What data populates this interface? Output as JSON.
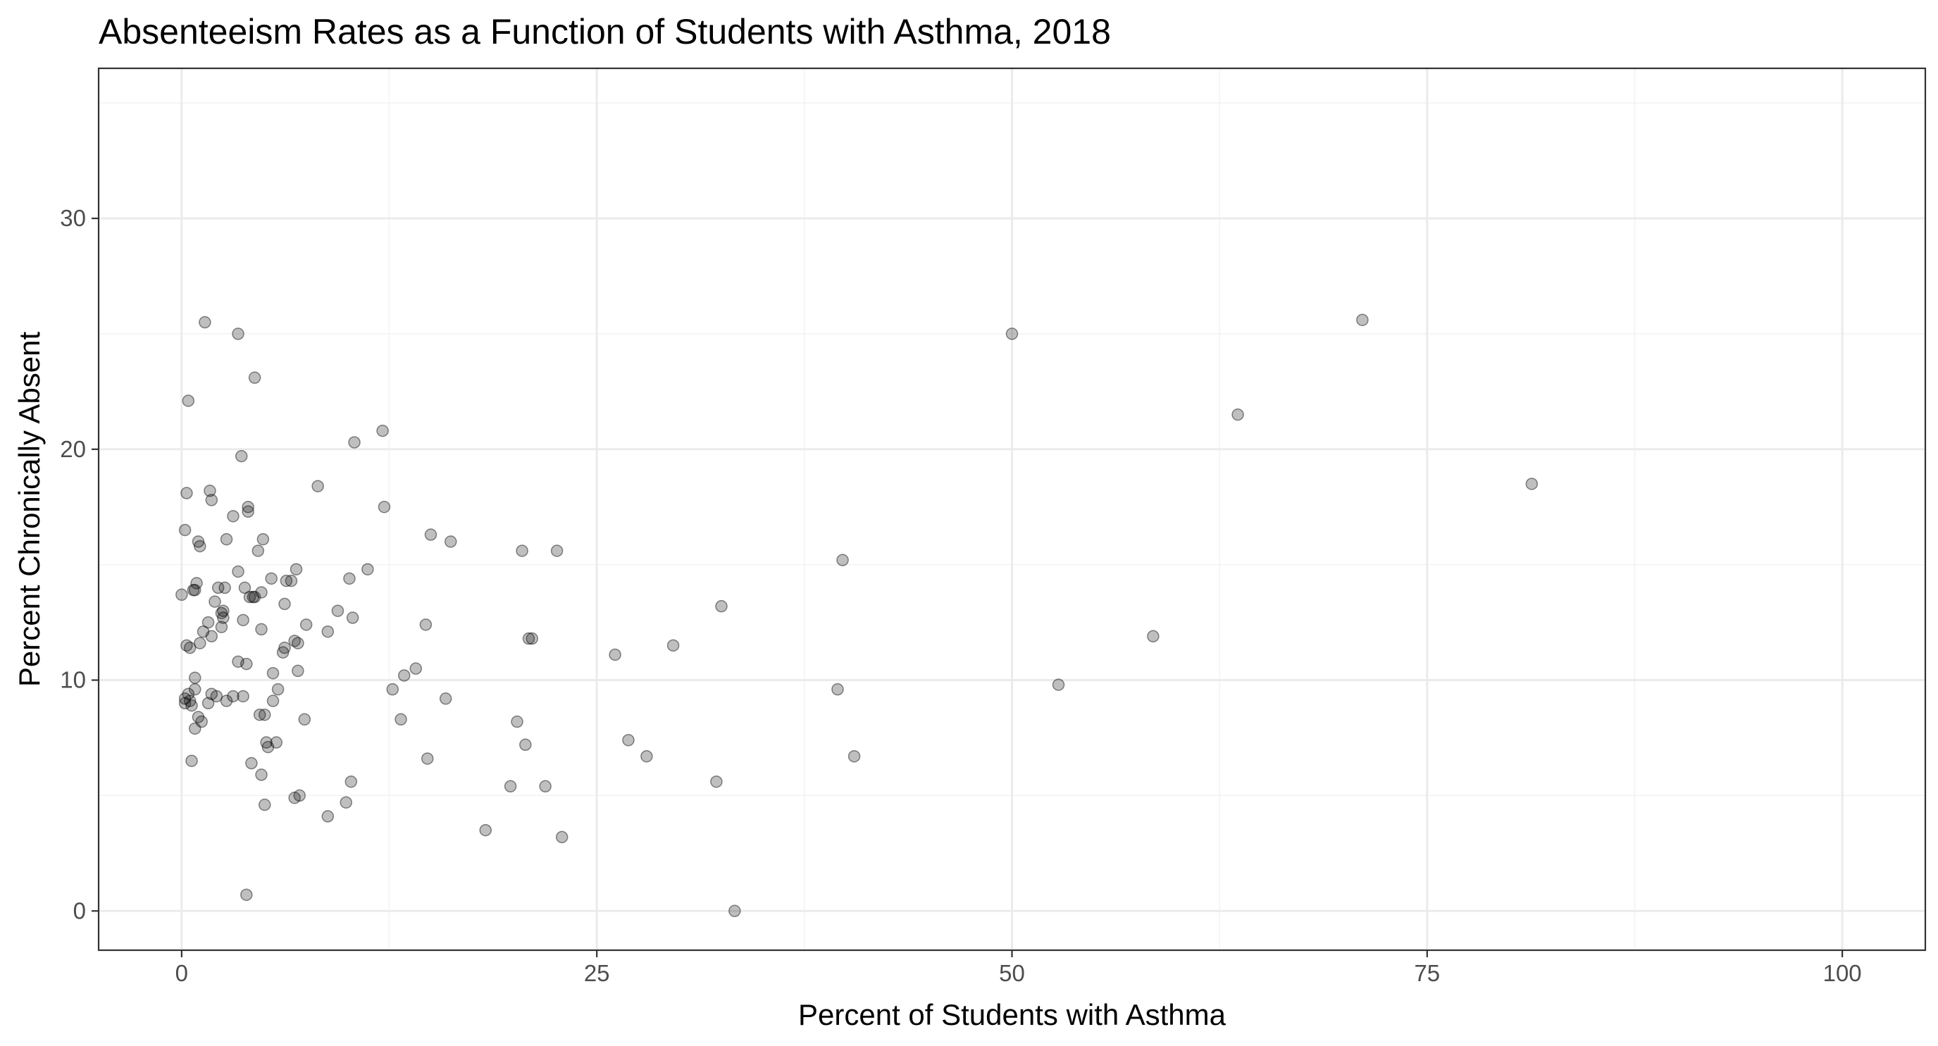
{
  "chart_data": {
    "type": "scatter",
    "title": "Absenteeism Rates as a Function of Students with Asthma, 2018",
    "xlabel": "Percent of Students with Asthma",
    "ylabel": "Percent Chronically Absent",
    "xlim": [
      -5,
      105
    ],
    "ylim": [
      -1.7,
      36.5
    ],
    "x_ticks": [
      0,
      25,
      50,
      75,
      100
    ],
    "y_ticks": [
      0,
      10,
      20,
      30
    ],
    "x_tick_labels": [
      "0",
      "25",
      "50",
      "75",
      "100"
    ],
    "y_tick_labels": [
      "0",
      "10",
      "20",
      "30"
    ],
    "point_color": "#000000",
    "point_alpha": 0.25,
    "points": [
      [
        0.0,
        13.7
      ],
      [
        0.2,
        16.5
      ],
      [
        0.2,
        9.2
      ],
      [
        0.2,
        9.0
      ],
      [
        0.3,
        18.1
      ],
      [
        0.3,
        11.5
      ],
      [
        0.4,
        22.1
      ],
      [
        0.4,
        9.4
      ],
      [
        0.5,
        11.4
      ],
      [
        0.5,
        9.1
      ],
      [
        0.6,
        6.5
      ],
      [
        0.6,
        8.9
      ],
      [
        0.7,
        13.9
      ],
      [
        0.8,
        13.9
      ],
      [
        0.8,
        10.1
      ],
      [
        0.8,
        9.6
      ],
      [
        0.8,
        7.9
      ],
      [
        0.9,
        14.2
      ],
      [
        1.0,
        16.0
      ],
      [
        1.0,
        8.4
      ],
      [
        1.1,
        15.8
      ],
      [
        1.1,
        11.6
      ],
      [
        1.2,
        8.2
      ],
      [
        1.3,
        12.1
      ],
      [
        1.4,
        25.5
      ],
      [
        1.6,
        12.5
      ],
      [
        1.6,
        9.0
      ],
      [
        1.7,
        18.2
      ],
      [
        1.8,
        17.8
      ],
      [
        1.8,
        11.9
      ],
      [
        1.8,
        9.4
      ],
      [
        2.0,
        13.4
      ],
      [
        2.1,
        9.3
      ],
      [
        2.2,
        14.0
      ],
      [
        2.4,
        12.9
      ],
      [
        2.4,
        12.3
      ],
      [
        2.5,
        12.7
      ],
      [
        2.5,
        13.0
      ],
      [
        2.6,
        14.0
      ],
      [
        2.7,
        16.1
      ],
      [
        2.7,
        9.1
      ],
      [
        3.1,
        17.1
      ],
      [
        3.1,
        9.3
      ],
      [
        3.4,
        25.0
      ],
      [
        3.4,
        14.7
      ],
      [
        3.4,
        10.8
      ],
      [
        3.6,
        19.7
      ],
      [
        3.7,
        12.6
      ],
      [
        3.7,
        9.3
      ],
      [
        3.8,
        14.0
      ],
      [
        3.9,
        10.7
      ],
      [
        3.9,
        0.7
      ],
      [
        4.0,
        17.5
      ],
      [
        4.0,
        17.3
      ],
      [
        4.1,
        13.6
      ],
      [
        4.2,
        6.4
      ],
      [
        4.3,
        13.6
      ],
      [
        4.4,
        23.1
      ],
      [
        4.4,
        13.6
      ],
      [
        4.6,
        15.6
      ],
      [
        4.7,
        8.5
      ],
      [
        4.8,
        13.8
      ],
      [
        4.8,
        12.2
      ],
      [
        4.8,
        5.9
      ],
      [
        4.9,
        16.1
      ],
      [
        5.0,
        8.5
      ],
      [
        5.0,
        4.6
      ],
      [
        5.1,
        7.3
      ],
      [
        5.2,
        7.1
      ],
      [
        5.4,
        14.4
      ],
      [
        5.5,
        10.3
      ],
      [
        5.5,
        9.1
      ],
      [
        5.7,
        7.3
      ],
      [
        5.8,
        9.6
      ],
      [
        6.1,
        11.2
      ],
      [
        6.2,
        11.4
      ],
      [
        6.2,
        13.3
      ],
      [
        6.3,
        14.3
      ],
      [
        6.6,
        14.3
      ],
      [
        6.8,
        11.7
      ],
      [
        6.8,
        4.9
      ],
      [
        6.9,
        14.8
      ],
      [
        7.0,
        10.4
      ],
      [
        7.0,
        11.6
      ],
      [
        7.1,
        5.0
      ],
      [
        7.4,
        8.3
      ],
      [
        7.5,
        12.4
      ],
      [
        8.2,
        18.4
      ],
      [
        8.8,
        12.1
      ],
      [
        8.8,
        4.1
      ],
      [
        9.4,
        13.0
      ],
      [
        9.9,
        4.7
      ],
      [
        10.1,
        14.4
      ],
      [
        10.2,
        5.6
      ],
      [
        10.3,
        12.7
      ],
      [
        10.4,
        20.3
      ],
      [
        11.2,
        14.8
      ],
      [
        12.1,
        20.8
      ],
      [
        12.2,
        17.5
      ],
      [
        12.7,
        9.6
      ],
      [
        13.2,
        8.3
      ],
      [
        13.4,
        10.2
      ],
      [
        14.1,
        10.5
      ],
      [
        14.7,
        12.4
      ],
      [
        14.8,
        6.6
      ],
      [
        15.0,
        16.3
      ],
      [
        15.9,
        9.2
      ],
      [
        16.2,
        16.0
      ],
      [
        18.3,
        3.5
      ],
      [
        19.8,
        5.4
      ],
      [
        20.2,
        8.2
      ],
      [
        20.5,
        15.6
      ],
      [
        20.7,
        7.2
      ],
      [
        20.9,
        11.8
      ],
      [
        21.1,
        11.8
      ],
      [
        21.9,
        5.4
      ],
      [
        22.6,
        15.6
      ],
      [
        22.9,
        3.2
      ],
      [
        26.1,
        11.1
      ],
      [
        26.9,
        7.4
      ],
      [
        28.0,
        6.7
      ],
      [
        29.6,
        11.5
      ],
      [
        32.2,
        5.6
      ],
      [
        32.5,
        13.2
      ],
      [
        33.3,
        0.0
      ],
      [
        39.5,
        9.6
      ],
      [
        39.8,
        15.2
      ],
      [
        40.5,
        6.7
      ],
      [
        50.0,
        25.0
      ],
      [
        52.8,
        9.8
      ],
      [
        58.5,
        11.9
      ],
      [
        63.6,
        21.5
      ],
      [
        71.1,
        25.6
      ],
      [
        81.3,
        18.5
      ]
    ]
  }
}
